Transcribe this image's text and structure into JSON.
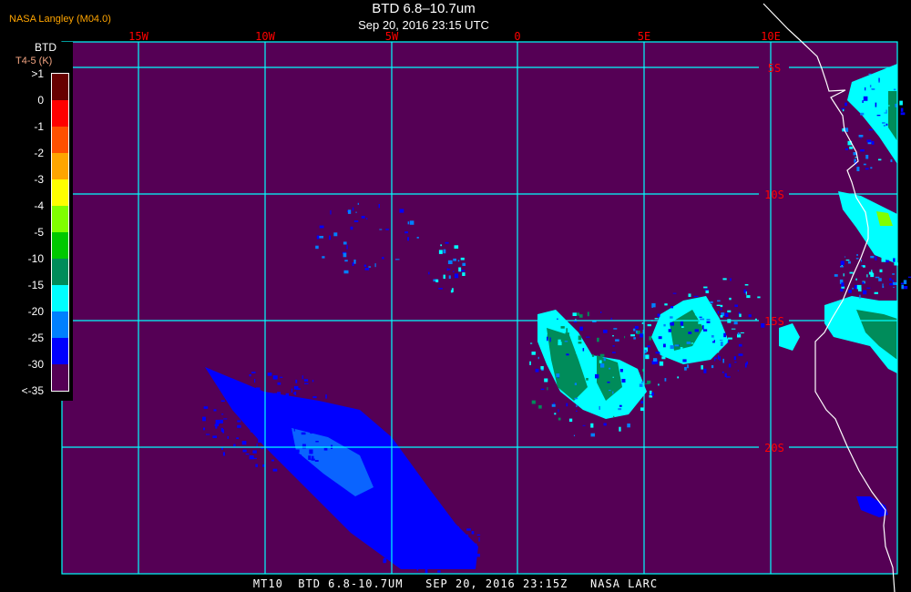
{
  "header": {
    "title": "BTD 6.8–10.7um",
    "subtitle": "Sep 20, 2016 23:15 UTC",
    "organization": "NASA Langley (M04.0)"
  },
  "colorbar": {
    "title": "BTD",
    "unit": "T4-5 (K)",
    "labels": [
      ">1",
      "0",
      "-1",
      "-2",
      "-3",
      "-4",
      "-5",
      "-10",
      "-15",
      "-20",
      "-25",
      "-30",
      "<-35"
    ],
    "colors": [
      "#660000",
      "#ff0000",
      "#ff5000",
      "#ffa500",
      "#ffff00",
      "#80ff00",
      "#00c800",
      "#008c5a",
      "#00ffff",
      "#0080ff",
      "#0000ff",
      "#550055"
    ]
  },
  "map": {
    "background_color": "#550055",
    "grid_color": "#00ffff",
    "coastline_color": "#ffffff",
    "longitude_labels": [
      "15W",
      "10W",
      "5W",
      "0",
      "5E",
      "10E"
    ],
    "latitude_labels": [
      "5S",
      "10S",
      "15S",
      "20S"
    ]
  },
  "footer": {
    "text": "MT10  BTD 6.8-10.7UM   SEP 20, 2016 23:15Z   NASA LARC"
  }
}
